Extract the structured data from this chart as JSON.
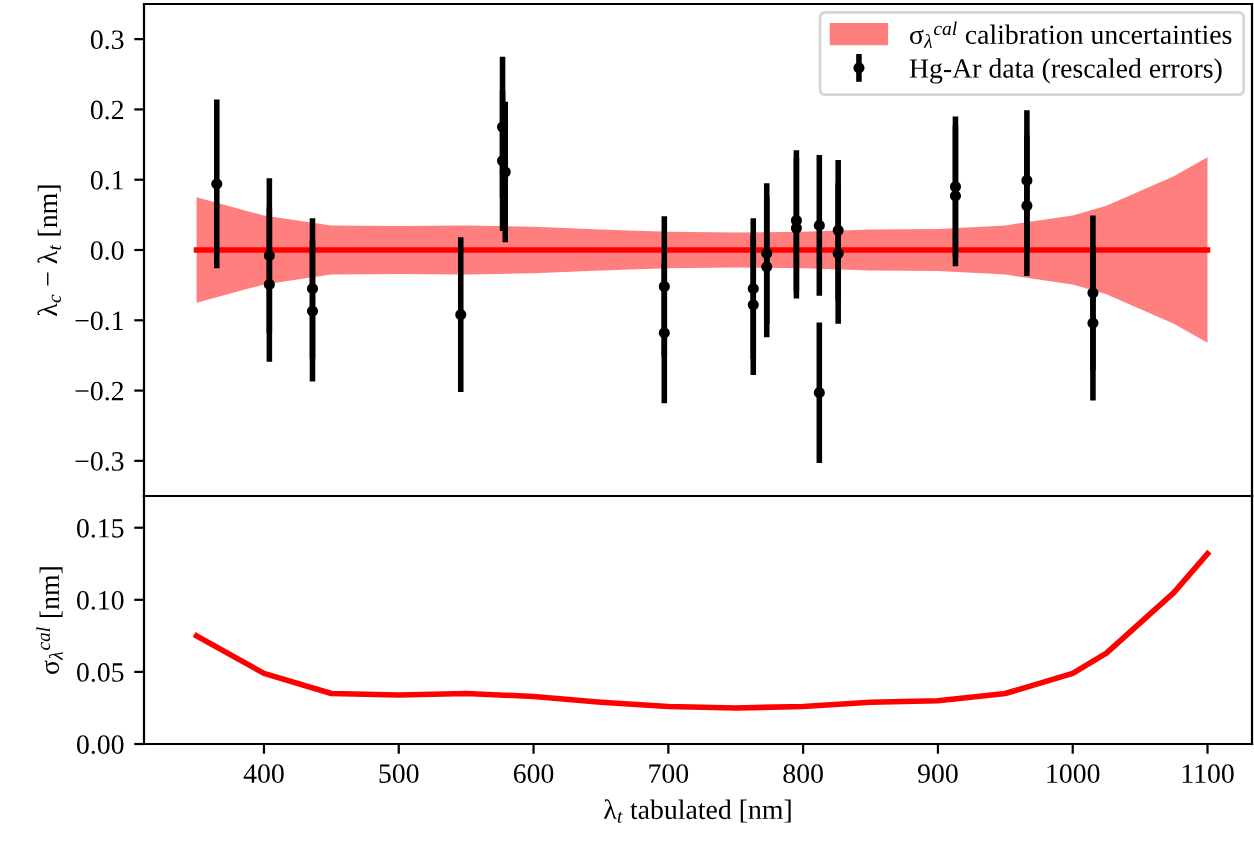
{
  "chart_data": [
    {
      "type": "scatter",
      "ylabel": "λ$_{c}$ − λ$_{t}$ [nm]",
      "xlim": [
        311,
        1133
      ],
      "xticks": [
        400,
        500,
        600,
        700,
        800,
        900,
        1000,
        1100
      ],
      "ylim": [
        -0.35,
        0.35
      ],
      "yticks": [
        {
          "value": -0.3,
          "label": "−0.3"
        },
        {
          "value": -0.2,
          "label": "−0.2"
        },
        {
          "value": -0.1,
          "label": "−0.1"
        },
        {
          "value": 0,
          "label": "0.0"
        },
        {
          "value": 0.1,
          "label": "0.1"
        },
        {
          "value": 0.2,
          "label": "0.2"
        },
        {
          "value": 0.3,
          "label": "0.3"
        }
      ],
      "tick_labels": "y",
      "grid": false,
      "legend": "top right",
      "series": [
        {
          "type": "line",
          "name": "σ$_{λ}$$^{cal}$ calibration uncertainties",
          "color": "#ff0000",
          "marker": "none",
          "x": [
            350,
            400,
            450,
            500,
            550,
            600,
            650,
            700,
            750,
            800,
            850,
            900,
            950,
            1000,
            1025,
            1050,
            1075,
            1100
          ],
          "values": [
            0,
            0,
            0,
            0,
            0,
            0,
            0,
            0,
            0,
            0,
            0,
            0,
            0,
            0,
            0,
            0,
            0,
            0
          ],
          "lower": [
            -0.075,
            -0.049,
            -0.035,
            -0.034,
            -0.035,
            -0.033,
            -0.029,
            -0.026,
            -0.025,
            -0.026,
            -0.029,
            -0.03,
            -0.035,
            -0.049,
            -0.063,
            -0.084,
            -0.105,
            -0.132
          ],
          "upper": [
            0.075,
            0.049,
            0.035,
            0.034,
            0.035,
            0.033,
            0.029,
            0.026,
            0.025,
            0.026,
            0.029,
            0.03,
            0.035,
            0.049,
            0.063,
            0.084,
            0.105,
            0.132
          ]
        },
        {
          "type": "scatter",
          "name": "Hg-Ar data (rescaled errors)",
          "color": "#000000",
          "marker": "circle",
          "x": [
            365,
            404,
            404,
            436,
            436,
            546,
            577,
            577,
            579,
            697,
            697,
            763,
            763,
            773,
            773,
            795,
            795,
            812,
            812,
            826,
            826,
            913,
            913,
            966,
            966,
            1015,
            1015
          ],
          "values": [
            0.094,
            -0.008,
            -0.049,
            -0.055,
            -0.087,
            -0.092,
            0.175,
            0.127,
            0.111,
            -0.052,
            -0.118,
            -0.055,
            -0.078,
            -0.005,
            -0.024,
            0.042,
            0.031,
            0.035,
            -0.203,
            0.028,
            -0.005,
            0.09,
            0.077,
            0.099,
            0.063,
            -0.061,
            -0.104
          ],
          "errors": [
            0.12,
            0.11,
            0.11,
            0.1,
            0.1,
            0.11,
            0.1,
            0.1,
            0.1,
            0.1,
            0.1,
            0.1,
            0.1,
            0.1,
            0.1,
            0.1,
            0.1,
            0.1,
            0.1,
            0.1,
            0.1,
            0.1,
            0.1,
            0.1,
            0.1,
            0.11,
            0.11
          ]
        }
      ]
    },
    {
      "type": "line",
      "xlabel": "λ$_{t}$ tabulated [nm]",
      "ylabel": "σ$_{λ}$$^{cal}$ [nm]",
      "xlim": [
        311,
        1133
      ],
      "xticks": [
        400,
        500,
        600,
        700,
        800,
        900,
        1000,
        1100
      ],
      "ylim": [
        0,
        0.172
      ],
      "yticks": [
        {
          "value": 0,
          "label": "0.00"
        },
        {
          "value": 0.05,
          "label": "0.05"
        },
        {
          "value": 0.1,
          "label": "0.10"
        },
        {
          "value": 0.15,
          "label": "0.15"
        }
      ],
      "grid": false,
      "legend": false,
      "series": [
        {
          "color": "#ff0000",
          "x": [
            350,
            400,
            450,
            500,
            550,
            600,
            650,
            700,
            750,
            800,
            850,
            900,
            950,
            1000,
            1025,
            1050,
            1075,
            1100
          ],
          "values": [
            0.075,
            0.049,
            0.035,
            0.034,
            0.035,
            0.033,
            0.029,
            0.026,
            0.025,
            0.026,
            0.029,
            0.03,
            0.035,
            0.049,
            0.063,
            0.084,
            0.105,
            0.132
          ]
        }
      ]
    }
  ]
}
